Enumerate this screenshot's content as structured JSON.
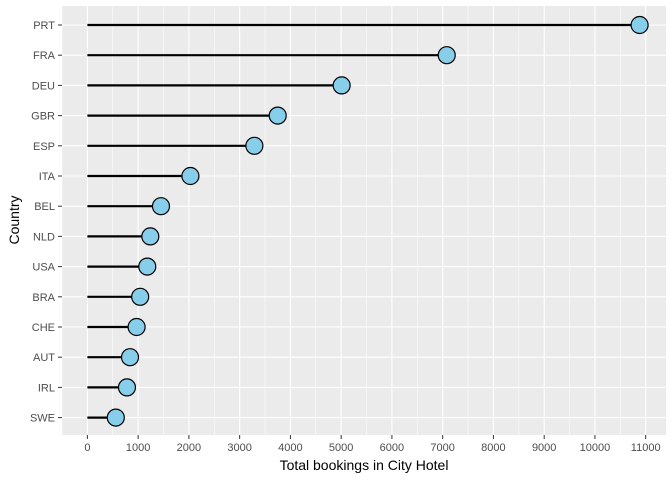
{
  "chart_data": {
    "type": "lollipop",
    "xlabel": "Total bookings in City Hotel",
    "ylabel": "Country",
    "xlim": [
      -500,
      11400
    ],
    "x_ticks": [
      0,
      1000,
      2000,
      3000,
      4000,
      5000,
      6000,
      7000,
      8000,
      9000,
      10000,
      11000
    ],
    "grid": true,
    "categories": [
      "PRT",
      "FRA",
      "DEU",
      "GBR",
      "ESP",
      "ITA",
      "BEL",
      "NLD",
      "USA",
      "BRA",
      "CHE",
      "AUT",
      "IRL",
      "SWE"
    ],
    "values": [
      10880,
      7080,
      5010,
      3750,
      3290,
      2030,
      1450,
      1240,
      1180,
      1040,
      970,
      840,
      780,
      560
    ]
  },
  "colors": {
    "panel_background": "#ebebeb",
    "grid_major": "#ffffff",
    "segment": "#000000",
    "point_fill": "#87ceeb",
    "point_stroke": "#000000"
  }
}
